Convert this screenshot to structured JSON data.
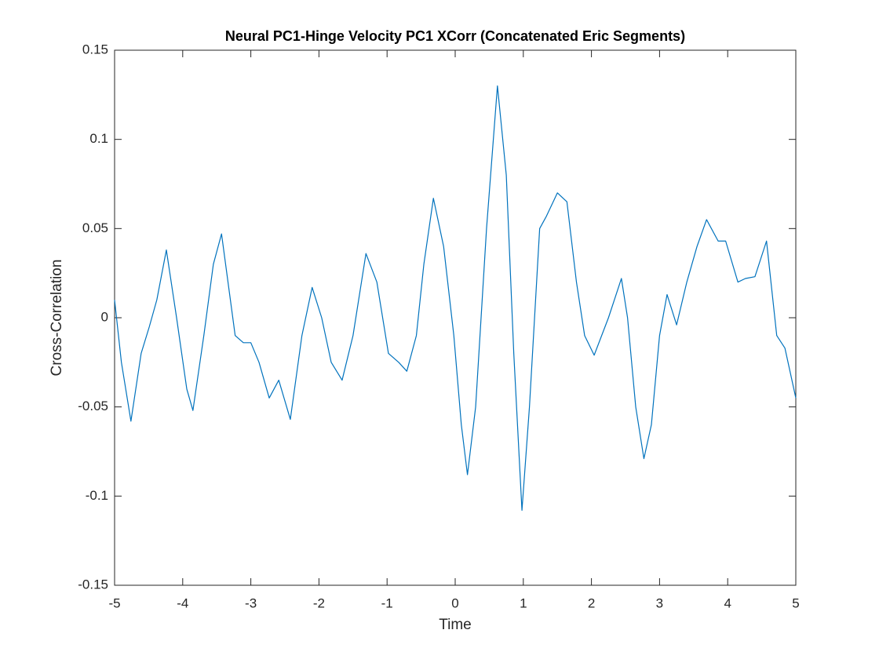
{
  "chart_data": {
    "type": "line",
    "title": "Neural PC1-Hinge Velocity PC1 XCorr (Concatenated Eric Segments)",
    "x_label": "Time",
    "y_label": "Cross-Correlation",
    "xlim": [
      -5,
      5
    ],
    "ylim": [
      -0.15,
      0.15
    ],
    "xticks": [
      -5,
      -4,
      -3,
      -2,
      -1,
      0,
      1,
      2,
      3,
      4,
      5
    ],
    "yticks": [
      -0.15,
      -0.1,
      -0.05,
      0,
      0.05,
      0.1,
      0.15
    ],
    "grid": false,
    "series": [
      {
        "color": "#0072bd",
        "x": [
          -5,
          -4.9,
          -4.76,
          -4.61,
          -4.49,
          -4.38,
          -4.24,
          -4.09,
          -3.94,
          -3.85,
          -3.69,
          -3.55,
          -3.43,
          -3.23,
          -3.11,
          -3.0,
          -2.88,
          -2.73,
          -2.59,
          -2.42,
          -2.25,
          -2.1,
          -1.96,
          -1.82,
          -1.66,
          -1.5,
          -1.31,
          -1.15,
          -0.98,
          -0.83,
          -0.71,
          -0.57,
          -0.46,
          -0.32,
          -0.17,
          -0.02,
          0.09,
          0.18,
          0.3,
          0.46,
          0.62,
          0.75,
          0.86,
          0.98,
          1.09,
          1.24,
          1.34,
          1.5,
          1.64,
          1.78,
          1.9,
          2.04,
          2.25,
          2.44,
          2.53,
          2.65,
          2.77,
          2.88,
          3.0,
          3.11,
          3.25,
          3.4,
          3.55,
          3.69,
          3.86,
          3.97,
          4.15,
          4.26,
          4.4,
          4.57,
          4.72,
          4.84,
          5.0
        ],
        "values": [
          0.01,
          -0.025,
          -0.058,
          -0.02,
          -0.005,
          0.01,
          0.038,
          0.0,
          -0.04,
          -0.052,
          -0.01,
          0.03,
          0.047,
          -0.01,
          -0.014,
          -0.014,
          -0.025,
          -0.045,
          -0.035,
          -0.057,
          -0.01,
          0.017,
          0.0,
          -0.025,
          -0.035,
          -0.01,
          0.036,
          0.02,
          -0.02,
          -0.025,
          -0.03,
          -0.01,
          0.03,
          0.067,
          0.04,
          -0.01,
          -0.06,
          -0.088,
          -0.05,
          0.05,
          0.13,
          0.08,
          -0.02,
          -0.108,
          -0.05,
          0.05,
          0.057,
          0.07,
          0.065,
          0.02,
          -0.01,
          -0.021,
          0.0,
          0.022,
          0.0,
          -0.05,
          -0.079,
          -0.06,
          -0.01,
          0.013,
          -0.004,
          0.02,
          0.04,
          0.055,
          0.043,
          0.043,
          0.02,
          0.022,
          0.023,
          0.043,
          -0.01,
          -0.017,
          -0.045
        ]
      }
    ]
  }
}
